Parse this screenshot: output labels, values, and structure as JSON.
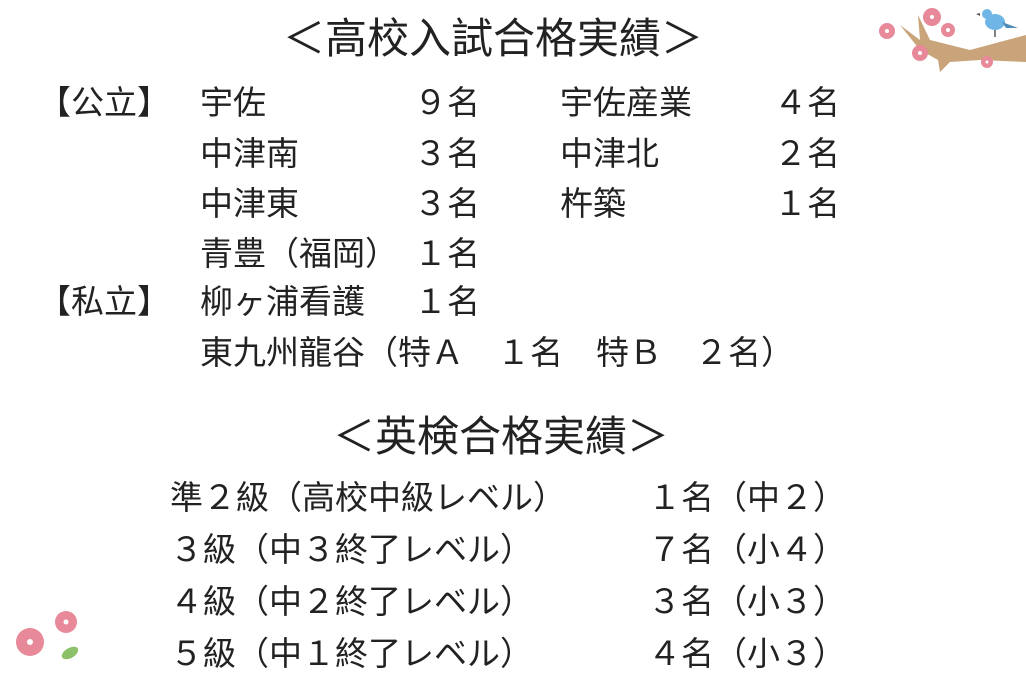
{
  "exam_results": {
    "title": "＜高校入試合格実績＞",
    "public_label": "【公立】",
    "private_label": "【私立】",
    "public": [
      {
        "school": "宇佐",
        "count": "９名"
      },
      {
        "school": "宇佐産業",
        "count": "４名"
      },
      {
        "school": "中津南",
        "count": "３名"
      },
      {
        "school": "中津北",
        "count": "２名"
      },
      {
        "school": "中津東",
        "count": "３名"
      },
      {
        "school": "杵築",
        "count": "１名"
      },
      {
        "school": "青豊（福岡）",
        "count": "１名"
      }
    ],
    "private": [
      {
        "school": "柳ヶ浦看護",
        "count": "１名"
      },
      {
        "school": "東九州龍谷（特Ａ　１名　特Ｂ　２名）",
        "count": ""
      }
    ]
  },
  "eiken": {
    "title": "＜英検合格実績＞",
    "rows": [
      {
        "grade": "準２級（高校中級レベル）",
        "result": "１名（中２）"
      },
      {
        "grade": "３級（中３終了レベル）",
        "result": "７名（小４）"
      },
      {
        "grade": "４級（中２終了レベル）",
        "result": "３名（小３）"
      },
      {
        "grade": "５級（中１終了レベル）",
        "result": "４名（小３）"
      }
    ]
  },
  "decorations": {
    "top_right": "cherry-branch-with-bird",
    "bottom_left": "cherry-blossoms"
  },
  "colors": {
    "text": "#222222",
    "blossom": "#e8899a",
    "branch": "#c9a47a",
    "bird": "#6fb6e6"
  }
}
